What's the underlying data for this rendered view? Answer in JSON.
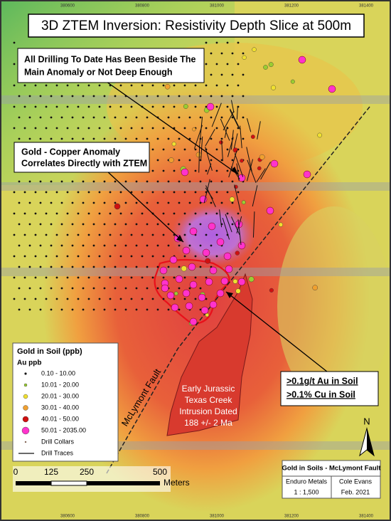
{
  "map": {
    "title": "3D ZTEM Inversion: Resistivity Depth Slice at 500m",
    "coordinates": [
      "380600",
      "380800",
      "381000",
      "381200",
      "381400"
    ],
    "callouts": [
      {
        "lines": [
          "All Drilling To Date Has Been Beside The",
          "Main Anomaly or Not Deep Enough"
        ]
      },
      {
        "lines": [
          "Gold - Copper Anomaly",
          "Correlates Directly with ZTEM"
        ]
      },
      {
        "lines": [
          ">0.1g/t Au in Soil",
          ">0.1% Cu in Soil"
        ]
      }
    ],
    "intrusion_label": [
      "Early Jurassic",
      "Texas Creek",
      "Intrusion Dated",
      "188 +/- 2 Ma"
    ],
    "fault_label": "McLymont Fault",
    "legend": {
      "title": "Gold in Soil (ppb)",
      "subtitle": "Au ppb",
      "items": [
        "0.10 - 10.00",
        "10.01 - 20.00",
        "20.01 - 30.00",
        "30.01 - 40.00",
        "40.01 - 50.00",
        "50.01 - 2035.00",
        "Drill Collars",
        "Drill Traces"
      ]
    },
    "scale_bar": {
      "labels": [
        "0",
        "125",
        "250",
        "500"
      ],
      "unit": "Meters"
    },
    "north": "N",
    "title_block": {
      "title": "Gold in Soils - McLymont Fault",
      "company": "Enduro Metals",
      "author": "Cole Evans",
      "scale": "1 : 1,500",
      "date": "Feb. 2021"
    }
  }
}
